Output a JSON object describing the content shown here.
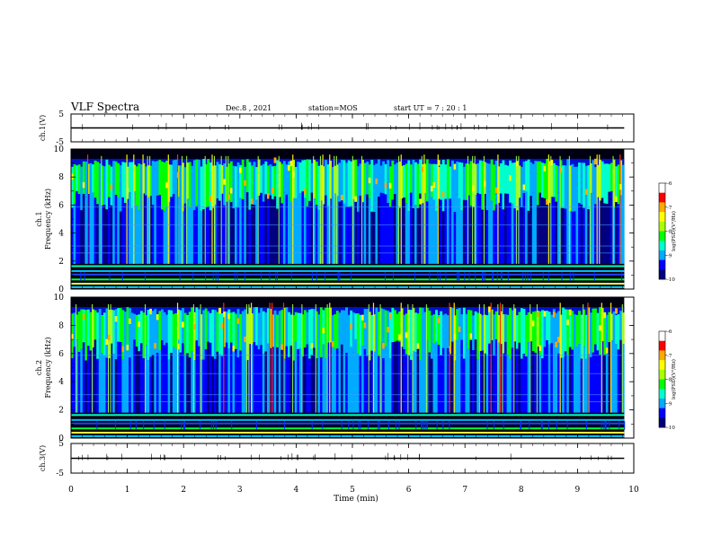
{
  "header": {
    "title": "VLF Spectra",
    "date": "Dec.8 , 2021",
    "station": "station=MOS",
    "start_ut": "start UT =  7 : 20 : 1"
  },
  "colors": {
    "spectrogram_scale": [
      "#000080",
      "#0000ff",
      "#00aaff",
      "#00ffcc",
      "#00ff00",
      "#aaff00",
      "#ffff00",
      "#ffaa00",
      "#ff0000",
      "#ffffff"
    ],
    "background_band": "#000010",
    "trace": "#000000"
  },
  "chart_data": [
    {
      "type": "line",
      "name": "ch1-waveform",
      "ylabel": "ch.1(V)",
      "ylim": [
        -5,
        5
      ],
      "yticks": [
        5,
        -5
      ],
      "x": [
        0,
        10
      ],
      "y": [
        0,
        0
      ]
    },
    {
      "type": "heatmap",
      "name": "ch1-spectrogram",
      "ylabel_line1": "ch.1",
      "ylabel_line2": "Frequency (kHz)",
      "ylim": [
        0,
        10
      ],
      "yticks": [
        0,
        2,
        4,
        6,
        8,
        10
      ],
      "xlim": [
        0,
        10
      ],
      "data_end_min": 9.83,
      "colorbar": {
        "label": "log(PSD)(V²/Hz)",
        "range": [
          -10,
          -6
        ],
        "ticks": [
          -6,
          -7,
          -8,
          -9,
          -10
        ]
      }
    },
    {
      "type": "heatmap",
      "name": "ch2-spectrogram",
      "ylabel_line1": "ch.2",
      "ylabel_line2": "Frequency (kHz)",
      "ylim": [
        0,
        10
      ],
      "yticks": [
        0,
        2,
        4,
        6,
        8,
        10
      ],
      "xlim": [
        0,
        10
      ],
      "data_end_min": 9.83,
      "colorbar": {
        "label": "log(PSD)(V²/Hz)",
        "range": [
          -10,
          -6
        ],
        "ticks": [
          -6,
          -7,
          -8,
          -9,
          -10
        ]
      }
    },
    {
      "type": "line",
      "name": "ch3-waveform",
      "ylabel": "ch.3(V)",
      "ylim": [
        -5,
        5
      ],
      "yticks": [
        5,
        -5
      ],
      "x": [
        0,
        10
      ],
      "y": [
        0,
        0
      ]
    }
  ],
  "xaxis": {
    "label": "Time (min)",
    "range": [
      0,
      10
    ],
    "ticks": [
      0,
      1,
      2,
      3,
      4,
      5,
      6,
      7,
      8,
      9,
      10
    ]
  }
}
